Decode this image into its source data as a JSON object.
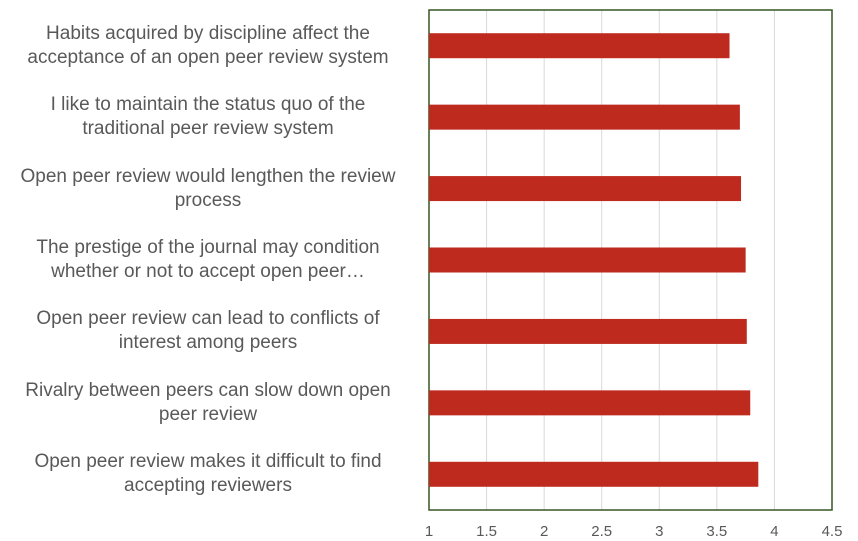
{
  "chart_data": {
    "type": "barh",
    "categories": [
      "Habits acquired by discipline affect the acceptance of an open peer review system",
      "I like to maintain the status quo of the traditional peer review system",
      "Open peer review would lengthen the review process",
      "The prestige of the journal may condition whether or not to accept open peer…",
      "Open peer review can lead to conflicts of interest among peers",
      "Rivalry between peers can slow down open peer review",
      "Open peer review makes it difficult to find accepting reviewers"
    ],
    "values": [
      3.61,
      3.7,
      3.71,
      3.75,
      3.76,
      3.79,
      3.86
    ],
    "color": "#be2a1e",
    "xlim": [
      1,
      4.5
    ],
    "xticks": [
      1,
      1.5,
      2,
      2.5,
      3,
      3.5,
      4,
      4.5
    ],
    "grid": true
  }
}
